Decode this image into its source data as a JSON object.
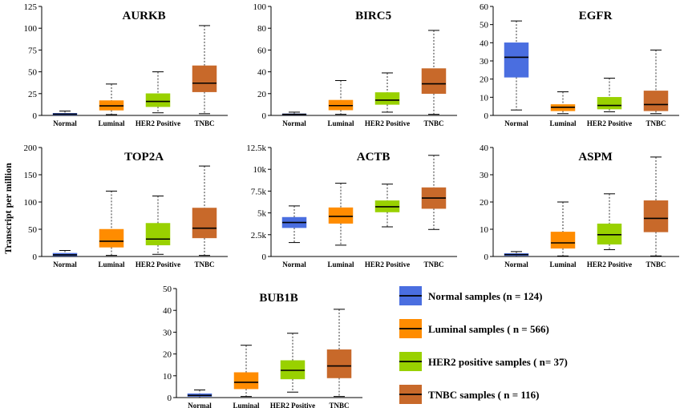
{
  "figure": {
    "y_axis_label": "Transcript per million",
    "categories": [
      "Normal",
      "Luminal",
      "HER2 Positive",
      "TNBC"
    ],
    "colors": [
      "#4a6ee0",
      "#ff8c00",
      "#99d100",
      "#c8692a"
    ]
  },
  "legend": [
    {
      "label": "Normal samples (n = 124)",
      "color": "#4a6ee0"
    },
    {
      "label": "Luminal samples ( n = 566)",
      "color": "#ff8c00"
    },
    {
      "label": "HER2 positive samples ( n= 37)",
      "color": "#99d100"
    },
    {
      "label": "TNBC samples ( n = 116)",
      "color": "#c8692a"
    }
  ],
  "chart_data": [
    {
      "type": "box",
      "title": "AURKB",
      "ylim": [
        0,
        125
      ],
      "yticks": [
        0,
        25,
        50,
        75,
        100,
        125
      ],
      "ytick_labels": [
        "0",
        "25",
        "50",
        "75",
        "100",
        "125"
      ],
      "categories": [
        "Normal",
        "Luminal",
        "HER2 Positive",
        "TNBC"
      ],
      "boxes": [
        {
          "min": 0,
          "q1": 0.5,
          "median": 1.5,
          "q3": 2.5,
          "max": 5
        },
        {
          "min": 1,
          "q1": 6,
          "median": 11,
          "q3": 17,
          "max": 36
        },
        {
          "min": 3,
          "q1": 10,
          "median": 16,
          "q3": 25,
          "max": 50
        },
        {
          "min": 2,
          "q1": 27,
          "median": 37,
          "q3": 57,
          "max": 103
        }
      ]
    },
    {
      "type": "box",
      "title": "BIRC5",
      "ylim": [
        0,
        100
      ],
      "yticks": [
        0,
        20,
        40,
        60,
        80,
        100
      ],
      "ytick_labels": [
        "0",
        "20",
        "40",
        "60",
        "80",
        "100"
      ],
      "categories": [
        "Normal",
        "Luminal",
        "HER2 Positive",
        "TNBC"
      ],
      "boxes": [
        {
          "min": 0,
          "q1": 0.5,
          "median": 1,
          "q3": 1.5,
          "max": 3
        },
        {
          "min": 1,
          "q1": 5,
          "median": 9,
          "q3": 14,
          "max": 32
        },
        {
          "min": 3,
          "q1": 10,
          "median": 14,
          "q3": 21,
          "max": 39
        },
        {
          "min": 1,
          "q1": 20,
          "median": 29,
          "q3": 43,
          "max": 78
        }
      ]
    },
    {
      "type": "box",
      "title": "EGFR",
      "ylim": [
        0,
        60
      ],
      "yticks": [
        0,
        10,
        20,
        30,
        40,
        50,
        60
      ],
      "ytick_labels": [
        "0",
        "10",
        "20",
        "30",
        "40",
        "50",
        "60"
      ],
      "categories": [
        "Normal",
        "Luminal",
        "HER2 Positive",
        "TNBC"
      ],
      "boxes": [
        {
          "min": 3,
          "q1": 21,
          "median": 32,
          "q3": 40,
          "max": 52
        },
        {
          "min": 1,
          "q1": 2.5,
          "median": 4.5,
          "q3": 6,
          "max": 13
        },
        {
          "min": 2,
          "q1": 3.5,
          "median": 5.5,
          "q3": 10,
          "max": 20.5
        },
        {
          "min": 1,
          "q1": 2.5,
          "median": 6,
          "q3": 13.5,
          "max": 36
        }
      ]
    },
    {
      "type": "box",
      "title": "TOP2A",
      "ylim": [
        0,
        200
      ],
      "yticks": [
        0,
        50,
        100,
        150,
        200
      ],
      "ytick_labels": [
        "0",
        "50",
        "100",
        "150",
        "200"
      ],
      "categories": [
        "Normal",
        "Luminal",
        "HER2 Positive",
        "TNBC"
      ],
      "boxes": [
        {
          "min": 0,
          "q1": 1,
          "median": 3,
          "q3": 6,
          "max": 11
        },
        {
          "min": 2,
          "q1": 17,
          "median": 28,
          "q3": 50,
          "max": 120
        },
        {
          "min": 4,
          "q1": 21,
          "median": 32,
          "q3": 61,
          "max": 111
        },
        {
          "min": 2,
          "q1": 34,
          "median": 52,
          "q3": 89,
          "max": 166
        }
      ]
    },
    {
      "type": "box",
      "title": "ACTB",
      "ylim": [
        0,
        12500
      ],
      "yticks": [
        0,
        2500,
        5000,
        7500,
        10000,
        12500
      ],
      "ytick_labels": [
        "0",
        "2.5k",
        "5k",
        "7.5k",
        "10k",
        "12.5k"
      ],
      "categories": [
        "Normal",
        "Luminal",
        "HER2 Positive",
        "TNBC"
      ],
      "boxes": [
        {
          "min": 1600,
          "q1": 3300,
          "median": 3900,
          "q3": 4500,
          "max": 5800
        },
        {
          "min": 1300,
          "q1": 3800,
          "median": 4600,
          "q3": 5600,
          "max": 8400
        },
        {
          "min": 3400,
          "q1": 5100,
          "median": 5700,
          "q3": 6400,
          "max": 8300
        },
        {
          "min": 3100,
          "q1": 5500,
          "median": 6700,
          "q3": 7900,
          "max": 11600
        }
      ]
    },
    {
      "type": "box",
      "title": "ASPM",
      "ylim": [
        0,
        40
      ],
      "yticks": [
        0,
        10,
        20,
        30,
        40
      ],
      "ytick_labels": [
        "0",
        "10",
        "20",
        "30",
        "40"
      ],
      "categories": [
        "Normal",
        "Luminal",
        "HER2 Positive",
        "TNBC"
      ],
      "boxes": [
        {
          "min": 0,
          "q1": 0.3,
          "median": 0.7,
          "q3": 1.1,
          "max": 1.8
        },
        {
          "min": 0.2,
          "q1": 3,
          "median": 5,
          "q3": 9,
          "max": 20
        },
        {
          "min": 2.5,
          "q1": 4.5,
          "median": 8,
          "q3": 12,
          "max": 23
        },
        {
          "min": 0.2,
          "q1": 9,
          "median": 14,
          "q3": 20.5,
          "max": 36.5
        }
      ]
    },
    {
      "type": "box",
      "title": "BUB1B",
      "ylim": [
        0,
        50
      ],
      "yticks": [
        0,
        10,
        20,
        30,
        40,
        50
      ],
      "ytick_labels": [
        "0",
        "10",
        "20",
        "30",
        "40",
        "50"
      ],
      "categories": [
        "Normal",
        "Luminal",
        "HER2 Positive",
        "TNBC"
      ],
      "boxes": [
        {
          "min": 0,
          "q1": 0.5,
          "median": 1,
          "q3": 1.8,
          "max": 3.5
        },
        {
          "min": 0.5,
          "q1": 4,
          "median": 7,
          "q3": 11.5,
          "max": 24
        },
        {
          "min": 2.5,
          "q1": 8.5,
          "median": 12.5,
          "q3": 17,
          "max": 29.5
        },
        {
          "min": 0.5,
          "q1": 9,
          "median": 14.5,
          "q3": 22,
          "max": 40.5
        }
      ]
    }
  ]
}
